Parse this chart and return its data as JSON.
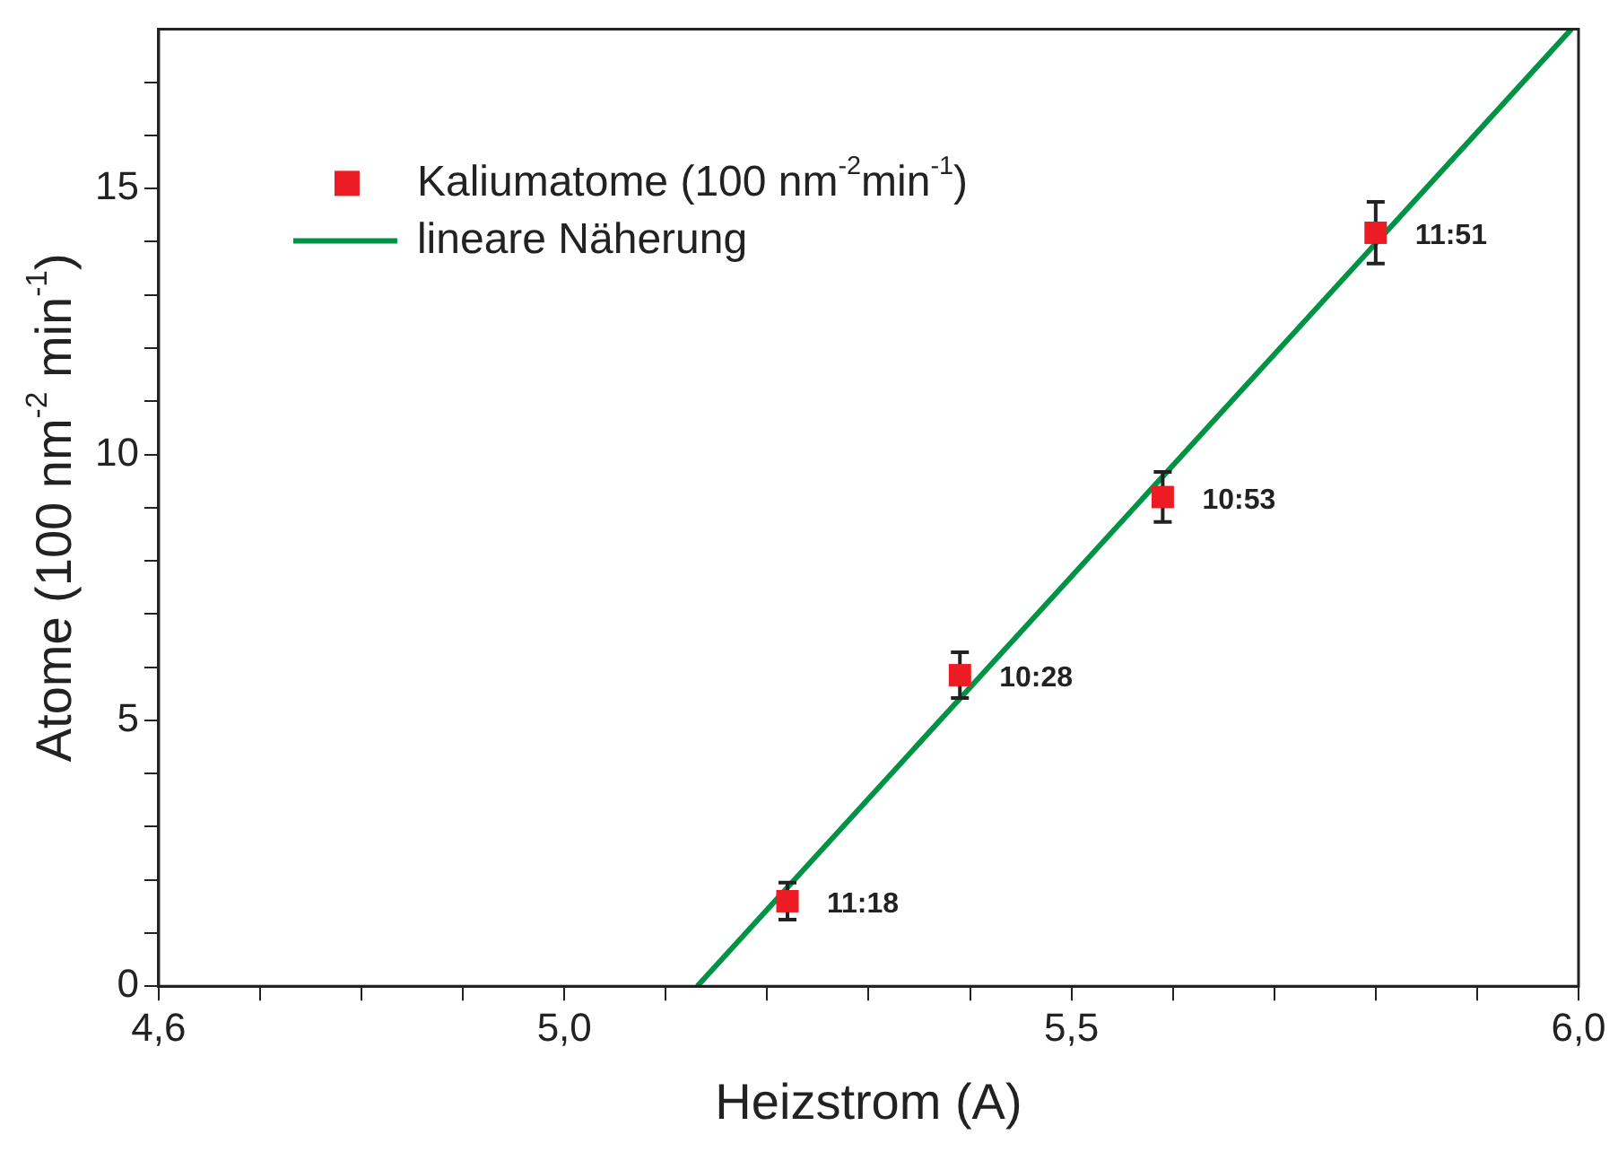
{
  "chart_data": {
    "type": "scatter",
    "xlabel": "Heizstrom (A)",
    "ylabel": "Atome (100 nm$^{-2}$ min$^{-1}$)",
    "xlim": [
      4.6,
      6.0
    ],
    "ylim": [
      0,
      18
    ],
    "xticks": [
      {
        "value": 4.6,
        "label": "4,6"
      },
      {
        "value": 4.7,
        "label": null
      },
      {
        "value": 4.8,
        "label": null
      },
      {
        "value": 4.9,
        "label": null
      },
      {
        "value": 5.0,
        "label": "5,0"
      },
      {
        "value": 5.1,
        "label": null
      },
      {
        "value": 5.2,
        "label": null
      },
      {
        "value": 5.3,
        "label": null
      },
      {
        "value": 5.4,
        "label": null
      },
      {
        "value": 5.5,
        "label": "5,5"
      },
      {
        "value": 5.6,
        "label": null
      },
      {
        "value": 5.7,
        "label": null
      },
      {
        "value": 5.8,
        "label": null
      },
      {
        "value": 5.9,
        "label": null
      },
      {
        "value": 6.0,
        "label": "6,0"
      }
    ],
    "yticks": [
      0,
      {
        "value": 1,
        "label": null
      },
      {
        "value": 2,
        "label": null
      },
      {
        "value": 3,
        "label": null
      },
      {
        "value": 4,
        "label": null
      },
      5,
      {
        "value": 6,
        "label": null
      },
      {
        "value": 7,
        "label": null
      },
      {
        "value": 8,
        "label": null
      },
      {
        "value": 9,
        "label": null
      },
      10,
      {
        "value": 11,
        "label": null
      },
      {
        "value": 12,
        "label": null
      },
      {
        "value": 13,
        "label": null
      },
      {
        "value": 14,
        "label": null
      },
      15,
      {
        "value": 16,
        "label": null
      },
      {
        "value": 17,
        "label": null
      }
    ],
    "grid": false,
    "legend": "top left",
    "marker": "square",
    "series": [
      {
        "name": "Kaliumatome (100 nm$^{-2}$min$^{-1}$)",
        "type": "scatter",
        "color": "#ed1c24",
        "x": [
          5.22,
          5.39,
          5.59,
          5.8
        ],
        "values": [
          1.6,
          5.85,
          9.2,
          14.17
        ],
        "errors": [
          0.35,
          0.43,
          0.47,
          0.58
        ]
      },
      {
        "name": "lineare Näherung",
        "type": "line",
        "color": "#009245",
        "x": [
          5.131,
          5.993
        ],
        "values": [
          0,
          18
        ],
        "marker": "none",
        "line_style": "solid"
      }
    ],
    "annotations": [
      {
        "text": "11:18",
        "x": 5.22,
        "y": 1.6
      },
      {
        "text": "10:28",
        "x": 5.39,
        "y": 5.85
      },
      {
        "text": "10:53",
        "x": 5.59,
        "y": 9.2
      },
      {
        "text": "11:51",
        "x": 5.8,
        "y": 14.17
      }
    ]
  }
}
